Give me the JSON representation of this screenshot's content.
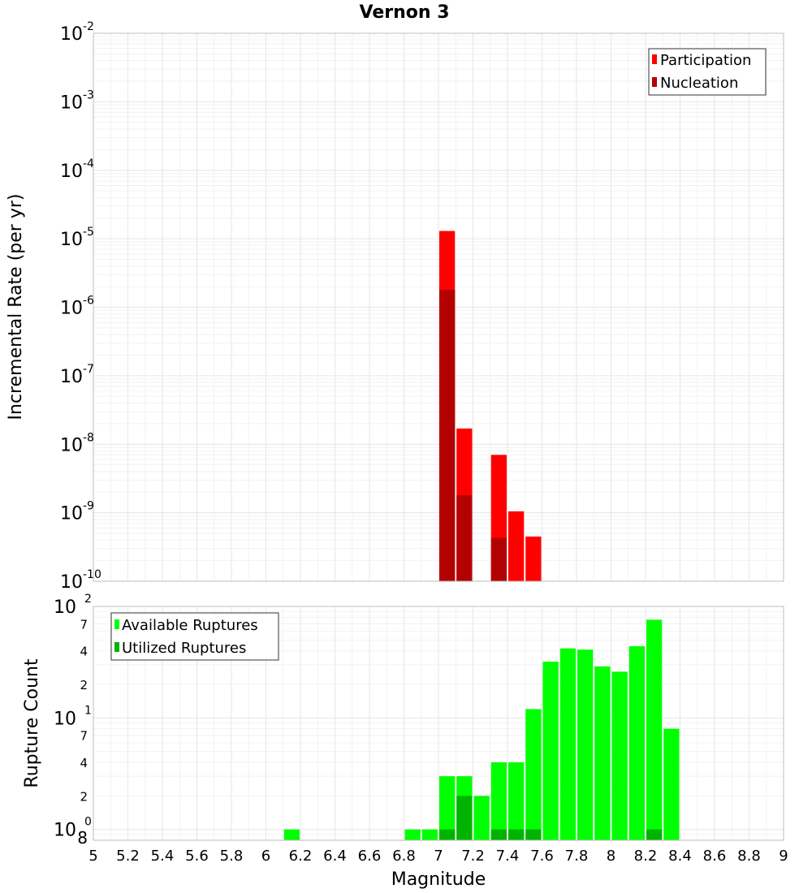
{
  "chart_data": [
    {
      "type": "bar",
      "title": "Vernon 3",
      "ylabel": "Incremental Rate (per yr)",
      "yscale": "log",
      "ylim": [
        1e-10,
        0.01
      ],
      "xlim": [
        5,
        9
      ],
      "bin_width": 0.1,
      "grid": true,
      "legend_position": "top-right",
      "y_ticks": [
        {
          "base": "10",
          "exp": "-2"
        },
        {
          "base": "10",
          "exp": "-3"
        },
        {
          "base": "10",
          "exp": "-4"
        },
        {
          "base": "10",
          "exp": "-5"
        },
        {
          "base": "10",
          "exp": "-6"
        },
        {
          "base": "10",
          "exp": "-7"
        },
        {
          "base": "10",
          "exp": "-8"
        },
        {
          "base": "10",
          "exp": "-9"
        },
        {
          "base": "10",
          "exp": "-10"
        }
      ],
      "series": [
        {
          "name": "Participation",
          "color": "#ff0000",
          "points": [
            {
              "x": 7.05,
              "y": 1.3e-05
            },
            {
              "x": 7.15,
              "y": 1.7e-08
            },
            {
              "x": 7.35,
              "y": 7e-09
            },
            {
              "x": 7.45,
              "y": 1.05e-09
            },
            {
              "x": 7.55,
              "y": 4.5e-10
            }
          ]
        },
        {
          "name": "Nucleation",
          "color": "#b30000",
          "points": [
            {
              "x": 7.05,
              "y": 1.8e-06
            },
            {
              "x": 7.15,
              "y": 1.8e-09
            },
            {
              "x": 7.35,
              "y": 4.3e-10
            }
          ]
        }
      ]
    },
    {
      "type": "bar",
      "ylabel": "Rupture Count",
      "xlabel": "Magnitude",
      "yscale": "log",
      "ylim": [
        0.8,
        100
      ],
      "xlim": [
        5,
        9
      ],
      "bin_width": 0.1,
      "grid": true,
      "legend_position": "top-left",
      "x_tick_labels": [
        "5",
        "5.2",
        "5.4",
        "5.6",
        "5.8",
        "6",
        "6.2",
        "6.4",
        "6.6",
        "6.8",
        "7",
        "7.2",
        "7.4",
        "7.6",
        "7.8",
        "8",
        "8.2",
        "8.4",
        "8.6",
        "8.8",
        "9"
      ],
      "y_ticks": [
        {
          "base": "10",
          "exp": "2"
        },
        {
          "base": "10",
          "exp": "1"
        },
        {
          "base": "10",
          "exp": "0"
        }
      ],
      "y_minor_labels": [
        "7",
        "4",
        "2",
        "7",
        "4",
        "2",
        "8"
      ],
      "series": [
        {
          "name": "Available Ruptures",
          "color": "#00ff00",
          "points": [
            {
              "x": 6.15,
              "y": 1
            },
            {
              "x": 6.85,
              "y": 1
            },
            {
              "x": 6.95,
              "y": 1
            },
            {
              "x": 7.05,
              "y": 3
            },
            {
              "x": 7.15,
              "y": 3
            },
            {
              "x": 7.25,
              "y": 2
            },
            {
              "x": 7.35,
              "y": 4
            },
            {
              "x": 7.45,
              "y": 4
            },
            {
              "x": 7.55,
              "y": 12
            },
            {
              "x": 7.65,
              "y": 32
            },
            {
              "x": 7.75,
              "y": 42
            },
            {
              "x": 7.85,
              "y": 41
            },
            {
              "x": 7.95,
              "y": 29
            },
            {
              "x": 8.05,
              "y": 26
            },
            {
              "x": 8.15,
              "y": 44
            },
            {
              "x": 8.25,
              "y": 76
            },
            {
              "x": 8.35,
              "y": 8
            }
          ]
        },
        {
          "name": "Utilized Ruptures",
          "color": "#00b300",
          "points": [
            {
              "x": 7.05,
              "y": 1
            },
            {
              "x": 7.15,
              "y": 2
            },
            {
              "x": 7.35,
              "y": 1
            },
            {
              "x": 7.45,
              "y": 1
            },
            {
              "x": 7.55,
              "y": 1
            },
            {
              "x": 8.25,
              "y": 1
            }
          ]
        }
      ]
    }
  ]
}
